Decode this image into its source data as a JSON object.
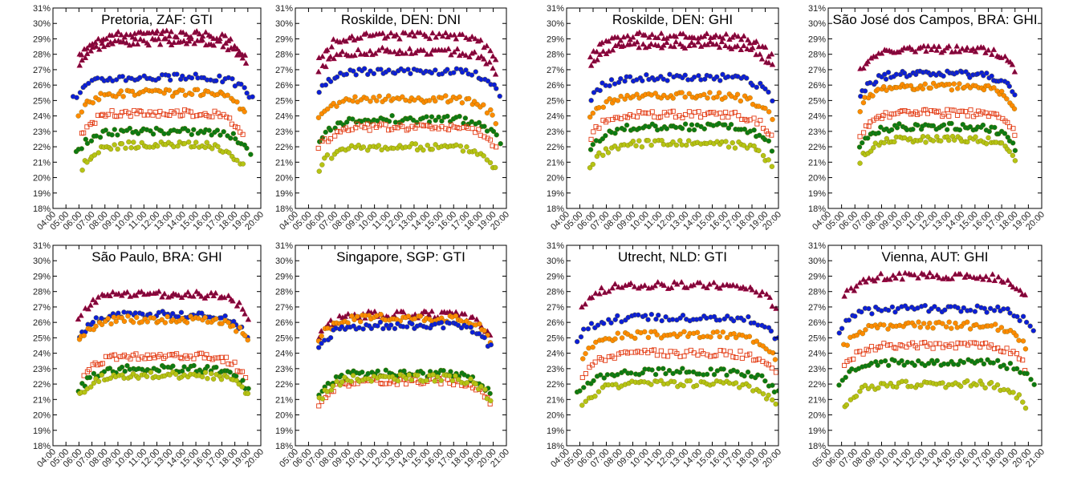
{
  "chart_data": [
    {
      "type": "scatter",
      "title": "Pretoria, ZAF: GTI",
      "xticks": [
        "04:00",
        "05:00",
        "06:00",
        "07:00",
        "08:00",
        "09:00",
        "10:00",
        "11:00",
        "12:00",
        "13:00",
        "14:00",
        "15:00",
        "16:00",
        "17:00",
        "18:00",
        "19:00",
        "20:00"
      ],
      "xlim": [
        "04:00",
        "20:00"
      ],
      "yticks": [
        "18%",
        "19%",
        "20%",
        "21%",
        "22%",
        "23%",
        "24%",
        "25%",
        "26%",
        "27%",
        "28%",
        "29%",
        "30%",
        "31%"
      ],
      "ylim": [
        18,
        31
      ],
      "series": [
        {
          "color": "#7a0a3a",
          "marker": "triangle",
          "start": 6.0,
          "end": 18.8,
          "levels": [
            28.8,
            29.3
          ]
        },
        {
          "color": "#0a1ed8",
          "marker": "circle",
          "start": 5.6,
          "end": 19.4,
          "levels": [
            26.5
          ]
        },
        {
          "color": "#ff8a00",
          "marker": "circle",
          "start": 6.0,
          "end": 18.8,
          "levels": [
            25.5
          ]
        },
        {
          "color": "#e33a12",
          "marker": "square",
          "start": 6.2,
          "end": 18.6,
          "levels": [
            24.2
          ]
        },
        {
          "color": "#0a7a14",
          "marker": "circle",
          "start": 5.8,
          "end": 19.2,
          "levels": [
            23.0
          ]
        },
        {
          "color": "#b5c414",
          "marker": "circle",
          "start": 6.2,
          "end": 18.6,
          "levels": [
            22.1
          ]
        }
      ]
    },
    {
      "type": "scatter",
      "title": "Roskilde, DEN: DNI",
      "xticks": [
        "04:00",
        "05:00",
        "06:00",
        "07:00",
        "08:00",
        "09:00",
        "10:00",
        "11:00",
        "12:00",
        "13:00",
        "14:00",
        "15:00",
        "16:00",
        "17:00",
        "18:00",
        "19:00",
        "20:00"
      ],
      "xlim": [
        "04:00",
        "20:00"
      ],
      "yticks": [
        "18%",
        "19%",
        "20%",
        "21%",
        "22%",
        "23%",
        "24%",
        "25%",
        "26%",
        "27%",
        "28%",
        "29%",
        "30%",
        "31%"
      ],
      "ylim": [
        18,
        31
      ],
      "series": [
        {
          "color": "#7a0a3a",
          "marker": "triangle",
          "start": 5.8,
          "end": 19.2,
          "levels": [
            29.2,
            28.2
          ]
        },
        {
          "color": "#0a1ed8",
          "marker": "circle",
          "start": 5.8,
          "end": 19.5,
          "levels": [
            26.9
          ]
        },
        {
          "color": "#ff8a00",
          "marker": "circle",
          "start": 5.8,
          "end": 19.2,
          "levels": [
            25.1
          ]
        },
        {
          "color": "#0a7a14",
          "marker": "circle",
          "start": 5.8,
          "end": 19.5,
          "levels": [
            23.8
          ]
        },
        {
          "color": "#e33a12",
          "marker": "square",
          "start": 5.8,
          "end": 19.2,
          "levels": [
            23.3
          ]
        },
        {
          "color": "#b5c414",
          "marker": "circle",
          "start": 5.8,
          "end": 19.2,
          "levels": [
            22.0
          ]
        }
      ]
    },
    {
      "type": "scatter",
      "title": "Roskilde, DEN: GHI",
      "xticks": [
        "04:00",
        "05:00",
        "06:00",
        "07:00",
        "08:00",
        "09:00",
        "10:00",
        "11:00",
        "12:00",
        "13:00",
        "14:00",
        "15:00",
        "16:00",
        "17:00",
        "18:00",
        "19:00",
        "20:00"
      ],
      "xlim": [
        "04:00",
        "20:00"
      ],
      "yticks": [
        "18%",
        "19%",
        "20%",
        "21%",
        "22%",
        "23%",
        "24%",
        "25%",
        "26%",
        "27%",
        "28%",
        "29%",
        "30%",
        "31%"
      ],
      "ylim": [
        18,
        31
      ],
      "series": [
        {
          "color": "#7a0a3a",
          "marker": "triangle",
          "start": 5.8,
          "end": 19.5,
          "levels": [
            28.6,
            29.2
          ]
        },
        {
          "color": "#0a1ed8",
          "marker": "circle",
          "start": 5.8,
          "end": 19.5,
          "levels": [
            26.5
          ]
        },
        {
          "color": "#ff8a00",
          "marker": "circle",
          "start": 5.8,
          "end": 19.5,
          "levels": [
            25.3
          ]
        },
        {
          "color": "#e33a12",
          "marker": "square",
          "start": 5.8,
          "end": 19.5,
          "levels": [
            24.1
          ]
        },
        {
          "color": "#0a7a14",
          "marker": "circle",
          "start": 5.8,
          "end": 19.5,
          "levels": [
            23.3
          ]
        },
        {
          "color": "#b5c414",
          "marker": "circle",
          "start": 5.8,
          "end": 19.5,
          "levels": [
            22.2
          ]
        }
      ]
    },
    {
      "type": "scatter",
      "title": "São José dos Campos, BRA: GHI",
      "xticks": [
        "04:00",
        "05:00",
        "06:00",
        "07:00",
        "08:00",
        "09:00",
        "10:00",
        "11:00",
        "12:00",
        "13:00",
        "14:00",
        "15:00",
        "16:00",
        "17:00",
        "18:00",
        "19:00",
        "20:00"
      ],
      "xlim": [
        "04:00",
        "20:00"
      ],
      "yticks": [
        "18%",
        "19%",
        "20%",
        "21%",
        "22%",
        "23%",
        "24%",
        "25%",
        "26%",
        "27%",
        "28%",
        "29%",
        "30%",
        "31%"
      ],
      "ylim": [
        18,
        31
      ],
      "series": [
        {
          "color": "#7a0a3a",
          "marker": "triangle",
          "start": 6.4,
          "end": 18.0,
          "levels": [
            28.3
          ]
        },
        {
          "color": "#0a1ed8",
          "marker": "circle",
          "start": 6.4,
          "end": 18.0,
          "levels": [
            26.7
          ]
        },
        {
          "color": "#ff8a00",
          "marker": "circle",
          "start": 6.4,
          "end": 18.0,
          "levels": [
            25.9
          ]
        },
        {
          "color": "#e33a12",
          "marker": "square",
          "start": 6.4,
          "end": 18.0,
          "levels": [
            24.2
          ]
        },
        {
          "color": "#0a7a14",
          "marker": "circle",
          "start": 6.4,
          "end": 18.0,
          "levels": [
            23.3
          ]
        },
        {
          "color": "#b5c414",
          "marker": "circle",
          "start": 6.4,
          "end": 18.0,
          "levels": [
            22.5
          ]
        }
      ]
    },
    {
      "type": "scatter",
      "title": "São Paulo, BRA: GHI",
      "xticks": [
        "04:00",
        "05:00",
        "06:00",
        "07:00",
        "08:00",
        "09:00",
        "10:00",
        "11:00",
        "12:00",
        "13:00",
        "14:00",
        "15:00",
        "16:00",
        "17:00",
        "18:00",
        "19:00",
        "20:00"
      ],
      "xlim": [
        "04:00",
        "20:00"
      ],
      "yticks": [
        "18%",
        "19%",
        "20%",
        "21%",
        "22%",
        "23%",
        "24%",
        "25%",
        "26%",
        "27%",
        "28%",
        "29%",
        "30%",
        "31%"
      ],
      "ylim": [
        18,
        31
      ],
      "series": [
        {
          "color": "#7a0a3a",
          "marker": "triangle",
          "start": 6.0,
          "end": 19.0,
          "levels": [
            27.8
          ]
        },
        {
          "color": "#0a1ed8",
          "marker": "circle",
          "start": 6.0,
          "end": 19.0,
          "levels": [
            26.5
          ]
        },
        {
          "color": "#ff8a00",
          "marker": "circle",
          "start": 6.0,
          "end": 19.0,
          "levels": [
            26.2
          ]
        },
        {
          "color": "#e33a12",
          "marker": "square",
          "start": 6.4,
          "end": 18.8,
          "levels": [
            23.8
          ]
        },
        {
          "color": "#0a7a14",
          "marker": "circle",
          "start": 6.0,
          "end": 19.0,
          "levels": [
            23.0
          ]
        },
        {
          "color": "#b5c414",
          "marker": "circle",
          "start": 6.0,
          "end": 19.0,
          "levels": [
            22.6
          ]
        }
      ]
    },
    {
      "type": "scatter",
      "title": "Singapore, SGP: GTI",
      "xticks": [
        "05:00",
        "06:00",
        "07:00",
        "08:00",
        "09:00",
        "10:00",
        "11:00",
        "12:00",
        "13:00",
        "14:00",
        "15:00",
        "16:00",
        "17:00",
        "18:00",
        "19:00",
        "20:00",
        "21:00"
      ],
      "xlim": [
        "05:00",
        "21:00"
      ],
      "yticks": [
        "18%",
        "19%",
        "20%",
        "21%",
        "22%",
        "23%",
        "24%",
        "25%",
        "26%",
        "27%",
        "28%",
        "29%",
        "30%",
        "31%"
      ],
      "ylim": [
        18,
        31
      ],
      "series": [
        {
          "color": "#7a0a3a",
          "marker": "triangle",
          "start": 6.8,
          "end": 19.8,
          "levels": [
            26.5
          ]
        },
        {
          "color": "#ff8a00",
          "marker": "circle",
          "start": 6.8,
          "end": 19.8,
          "levels": [
            26.3
          ]
        },
        {
          "color": "#0a1ed8",
          "marker": "circle",
          "start": 6.8,
          "end": 19.8,
          "levels": [
            25.8
          ]
        },
        {
          "color": "#0a7a14",
          "marker": "circle",
          "start": 6.8,
          "end": 19.8,
          "levels": [
            22.7
          ]
        },
        {
          "color": "#e33a12",
          "marker": "square",
          "start": 6.8,
          "end": 19.8,
          "levels": [
            22.2
          ]
        },
        {
          "color": "#b5c414",
          "marker": "circle",
          "start": 6.8,
          "end": 19.8,
          "levels": [
            22.4
          ]
        }
      ]
    },
    {
      "type": "scatter",
      "title": "Utrecht, NLD: GTI",
      "xticks": [
        "04:00",
        "05:00",
        "06:00",
        "07:00",
        "08:00",
        "09:00",
        "10:00",
        "11:00",
        "12:00",
        "13:00",
        "14:00",
        "15:00",
        "16:00",
        "17:00",
        "18:00",
        "19:00",
        "20:00"
      ],
      "xlim": [
        "04:00",
        "20:00"
      ],
      "yticks": [
        "18%",
        "19%",
        "20%",
        "21%",
        "22%",
        "23%",
        "24%",
        "25%",
        "26%",
        "27%",
        "28%",
        "29%",
        "30%",
        "31%"
      ],
      "ylim": [
        18,
        31
      ],
      "series": [
        {
          "color": "#7a0a3a",
          "marker": "triangle",
          "start": 5.2,
          "end": 19.8,
          "levels": [
            28.4
          ]
        },
        {
          "color": "#0a1ed8",
          "marker": "circle",
          "start": 4.8,
          "end": 20.0,
          "levels": [
            26.3
          ]
        },
        {
          "color": "#ff8a00",
          "marker": "circle",
          "start": 5.2,
          "end": 19.8,
          "levels": [
            25.2
          ]
        },
        {
          "color": "#e33a12",
          "marker": "square",
          "start": 5.2,
          "end": 19.8,
          "levels": [
            24.0
          ]
        },
        {
          "color": "#0a7a14",
          "marker": "circle",
          "start": 4.8,
          "end": 20.0,
          "levels": [
            22.8
          ]
        },
        {
          "color": "#b5c414",
          "marker": "circle",
          "start": 5.2,
          "end": 19.8,
          "levels": [
            22.0
          ]
        }
      ]
    },
    {
      "type": "scatter",
      "title": "Vienna, AUT: GHI",
      "xticks": [
        "05:00",
        "06:00",
        "07:00",
        "08:00",
        "09:00",
        "10:00",
        "11:00",
        "12:00",
        "13:00",
        "14:00",
        "15:00",
        "16:00",
        "17:00",
        "18:00",
        "19:00",
        "20:00",
        "21:00"
      ],
      "xlim": [
        "05:00",
        "21:00"
      ],
      "yticks": [
        "18%",
        "19%",
        "20%",
        "21%",
        "22%",
        "23%",
        "24%",
        "25%",
        "26%",
        "27%",
        "28%",
        "29%",
        "30%",
        "31%"
      ],
      "ylim": [
        18,
        31
      ],
      "series": [
        {
          "color": "#7a0a3a",
          "marker": "triangle",
          "start": 6.2,
          "end": 19.8,
          "levels": [
            29.0
          ]
        },
        {
          "color": "#0a1ed8",
          "marker": "circle",
          "start": 5.8,
          "end": 20.4,
          "levels": [
            26.9
          ]
        },
        {
          "color": "#ff8a00",
          "marker": "circle",
          "start": 6.2,
          "end": 19.8,
          "levels": [
            25.8
          ]
        },
        {
          "color": "#e33a12",
          "marker": "square",
          "start": 6.2,
          "end": 19.8,
          "levels": [
            24.5
          ]
        },
        {
          "color": "#0a7a14",
          "marker": "circle",
          "start": 5.8,
          "end": 20.4,
          "levels": [
            23.4
          ]
        },
        {
          "color": "#b5c414",
          "marker": "circle",
          "start": 6.2,
          "end": 19.8,
          "levels": [
            22.0
          ]
        }
      ]
    }
  ]
}
